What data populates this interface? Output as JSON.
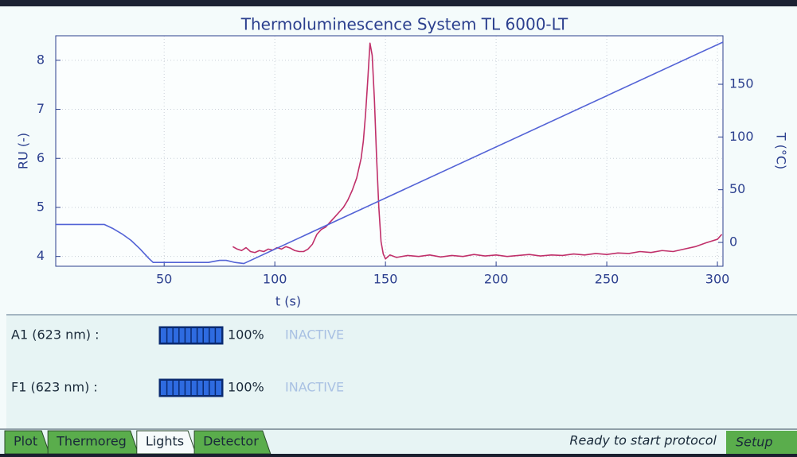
{
  "chart_data": {
    "type": "line",
    "title": "Thermoluminescence System TL 6000-LT",
    "x_label": "t (s)",
    "y_label": "RU (-)",
    "y2_label": "T (°C)",
    "xlim": [
      1,
      302.5
    ],
    "xticks": [
      50,
      100,
      150,
      200,
      250,
      300
    ],
    "ylim": [
      3.8,
      8.5
    ],
    "yticks": [
      4,
      5,
      6,
      7,
      8
    ],
    "y2lim": [
      -22.6,
      196
    ],
    "y2ticks": [
      0,
      50,
      100,
      150
    ],
    "grid": true,
    "series": [
      {
        "color": "#c0306a",
        "x": [
          81,
          83,
          85,
          87,
          89,
          91,
          93,
          95,
          97,
          99,
          101,
          103,
          105,
          107,
          109,
          111,
          113,
          115,
          117,
          119,
          121,
          123,
          125,
          127,
          129,
          131,
          133,
          135,
          137,
          139,
          140,
          141,
          142,
          143,
          144,
          145,
          146,
          147,
          148,
          149,
          150,
          152,
          155,
          160,
          165,
          170,
          175,
          180,
          185,
          190,
          195,
          200,
          205,
          210,
          215,
          220,
          225,
          230,
          235,
          240,
          245,
          250,
          255,
          260,
          265,
          270,
          275,
          280,
          285,
          290,
          295,
          300,
          302
        ],
        "values": [
          4.2,
          4.15,
          4.12,
          4.18,
          4.1,
          4.08,
          4.12,
          4.1,
          4.15,
          4.13,
          4.18,
          4.15,
          4.2,
          4.17,
          4.12,
          4.1,
          4.1,
          4.15,
          4.25,
          4.45,
          4.55,
          4.6,
          4.7,
          4.8,
          4.9,
          5.0,
          5.15,
          5.35,
          5.6,
          6.0,
          6.35,
          6.9,
          7.6,
          8.35,
          8.1,
          7.2,
          6.0,
          5.0,
          4.3,
          4.05,
          3.95,
          4.03,
          3.98,
          4.02,
          4.0,
          4.03,
          3.99,
          4.02,
          4.0,
          4.04,
          4.01,
          4.03,
          4.0,
          4.02,
          4.04,
          4.01,
          4.03,
          4.02,
          4.05,
          4.03,
          4.06,
          4.04,
          4.07,
          4.06,
          4.1,
          4.08,
          4.12,
          4.1,
          4.15,
          4.2,
          4.28,
          4.35,
          4.45
        ]
      },
      {
        "color": "#5363d6",
        "axis": "y2",
        "x": [
          1,
          23,
          27,
          31,
          35,
          39,
          43,
          45,
          70,
          75,
          78,
          82,
          86,
          302.5
        ],
        "values": [
          17,
          17,
          13,
          8,
          2,
          -6,
          -15,
          -19,
          -19,
          -17,
          -17,
          -19,
          -20,
          190
        ]
      }
    ]
  },
  "lights": [
    {
      "label": "A1 (623 nm) :",
      "level": 100,
      "level_label": "100%",
      "state": "INACTIVE"
    },
    {
      "label": "F1 (623 nm) :",
      "level": 100,
      "level_label": "100%",
      "state": "INACTIVE"
    }
  ],
  "tabs": [
    {
      "label": "Plot",
      "active": false
    },
    {
      "label": "Thermoreg",
      "active": false
    },
    {
      "label": "Lights",
      "active": true
    },
    {
      "label": "Detector",
      "active": false
    }
  ],
  "status": "Ready to start protocol",
  "setup_button": "Setup"
}
